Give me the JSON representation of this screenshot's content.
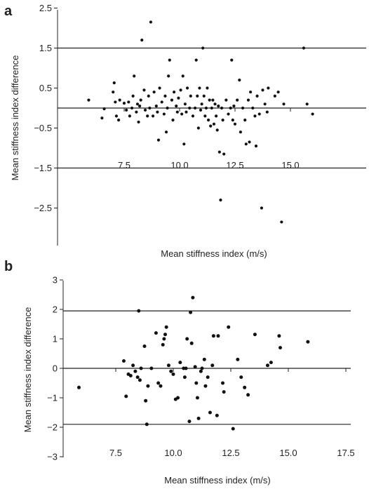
{
  "chart_data": [
    {
      "type": "scatter",
      "panel_label": "a",
      "xlabel": "Mean stiffness index (m/s)",
      "ylabel": "Mean stiffness index difference",
      "xlim": [
        5.5,
        16.5
      ],
      "ylim": [
        -3.0,
        3.0
      ],
      "x_ticks": [
        "7.5",
        "10.0",
        "12.5",
        "15.0"
      ],
      "y_ticks": [
        "2.5",
        "1.5",
        "0.5",
        "−0.5",
        "−1.5",
        "−2.5"
      ],
      "reference_lines": [
        1.5,
        0.0,
        -1.5
      ],
      "points": [
        [
          5.9,
          0.2
        ],
        [
          6.5,
          -0.25
        ],
        [
          6.6,
          -0.02
        ],
        [
          7.0,
          0.4
        ],
        [
          7.05,
          0.63
        ],
        [
          7.1,
          0.15
        ],
        [
          7.15,
          -0.2
        ],
        [
          7.25,
          -0.3
        ],
        [
          7.3,
          0.2
        ],
        [
          7.5,
          0.12
        ],
        [
          7.6,
          -0.05
        ],
        [
          7.7,
          0.15
        ],
        [
          7.75,
          -0.2
        ],
        [
          7.85,
          0.0
        ],
        [
          7.9,
          0.3
        ],
        [
          7.95,
          0.8
        ],
        [
          8.05,
          -0.1
        ],
        [
          8.1,
          0.1
        ],
        [
          8.15,
          -0.35
        ],
        [
          8.2,
          0.05
        ],
        [
          8.25,
          0.2
        ],
        [
          8.3,
          1.7
        ],
        [
          8.4,
          0.45
        ],
        [
          8.45,
          -0.05
        ],
        [
          8.55,
          -0.2
        ],
        [
          8.6,
          0.3
        ],
        [
          8.65,
          0.0
        ],
        [
          8.7,
          2.15
        ],
        [
          8.8,
          -0.2
        ],
        [
          8.85,
          0.4
        ],
        [
          8.95,
          0.05
        ],
        [
          9.0,
          -0.1
        ],
        [
          9.05,
          -0.8
        ],
        [
          9.1,
          0.5
        ],
        [
          9.2,
          0.15
        ],
        [
          9.3,
          -0.15
        ],
        [
          9.35,
          0.3
        ],
        [
          9.4,
          -0.6
        ],
        [
          9.45,
          0.0
        ],
        [
          9.5,
          0.8
        ],
        [
          9.55,
          1.2
        ],
        [
          9.65,
          0.2
        ],
        [
          9.7,
          -0.3
        ],
        [
          9.75,
          0.4
        ],
        [
          9.85,
          0.05
        ],
        [
          9.9,
          -0.1
        ],
        [
          9.95,
          0.25
        ],
        [
          10.05,
          0.45
        ],
        [
          10.1,
          -0.15
        ],
        [
          10.15,
          0.8
        ],
        [
          10.2,
          -0.9
        ],
        [
          10.25,
          0.1
        ],
        [
          10.3,
          -0.1
        ],
        [
          10.35,
          0.5
        ],
        [
          10.45,
          0.0
        ],
        [
          10.5,
          0.3
        ],
        [
          10.6,
          -0.2
        ],
        [
          10.7,
          0.0
        ],
        [
          10.75,
          1.2
        ],
        [
          10.8,
          0.3
        ],
        [
          10.85,
          -0.5
        ],
        [
          10.9,
          0.5
        ],
        [
          10.95,
          -0.05
        ],
        [
          11.0,
          0.1
        ],
        [
          11.05,
          1.5
        ],
        [
          11.1,
          0.3
        ],
        [
          11.15,
          -0.2
        ],
        [
          11.2,
          0.0
        ],
        [
          11.25,
          0.5
        ],
        [
          11.3,
          -0.3
        ],
        [
          11.35,
          0.2
        ],
        [
          11.4,
          -0.45
        ],
        [
          11.45,
          0.0
        ],
        [
          11.5,
          0.2
        ],
        [
          11.55,
          -0.4
        ],
        [
          11.6,
          0.1
        ],
        [
          11.65,
          -0.2
        ],
        [
          11.7,
          -0.55
        ],
        [
          11.75,
          0.05
        ],
        [
          11.8,
          -1.1
        ],
        [
          11.85,
          -2.3
        ],
        [
          11.9,
          0.0
        ],
        [
          11.95,
          -0.3
        ],
        [
          12.0,
          -1.15
        ],
        [
          12.1,
          0.2
        ],
        [
          12.2,
          -0.15
        ],
        [
          12.3,
          0.0
        ],
        [
          12.35,
          1.2
        ],
        [
          12.4,
          -0.3
        ],
        [
          12.45,
          0.05
        ],
        [
          12.5,
          -0.4
        ],
        [
          12.6,
          0.2
        ],
        [
          12.7,
          0.7
        ],
        [
          12.75,
          -0.6
        ],
        [
          12.85,
          0.0
        ],
        [
          12.95,
          -0.3
        ],
        [
          13.0,
          -0.9
        ],
        [
          13.1,
          0.2
        ],
        [
          13.15,
          -0.85
        ],
        [
          13.2,
          0.4
        ],
        [
          13.3,
          0.0
        ],
        [
          13.4,
          -0.2
        ],
        [
          13.45,
          -0.95
        ],
        [
          13.5,
          0.3
        ],
        [
          13.6,
          -0.15
        ],
        [
          13.7,
          -2.5
        ],
        [
          13.75,
          0.45
        ],
        [
          13.85,
          0.1
        ],
        [
          13.95,
          -0.1
        ],
        [
          14.0,
          0.5
        ],
        [
          14.3,
          0.3
        ],
        [
          14.45,
          0.4
        ],
        [
          14.6,
          -2.85
        ],
        [
          14.7,
          0.1
        ],
        [
          15.6,
          1.5
        ],
        [
          15.75,
          0.1
        ],
        [
          16.0,
          -0.15
        ]
      ]
    },
    {
      "type": "scatter",
      "panel_label": "b",
      "xlabel": "Mean stiffness index (m/s)",
      "ylabel": "Mean stiffness index difference",
      "xlim": [
        5.5,
        17.5
      ],
      "ylim": [
        -3.0,
        3.0
      ],
      "x_ticks": [
        "7.5",
        "10.0",
        "12.5",
        "15.0",
        "17.5"
      ],
      "y_ticks": [
        "3",
        "2",
        "1",
        "0",
        "−1",
        "−2",
        "−3"
      ],
      "reference_lines": [
        1.95,
        0.0,
        -1.9
      ],
      "points": [
        [
          5.9,
          -0.65
        ],
        [
          7.85,
          0.25
        ],
        [
          7.95,
          -0.95
        ],
        [
          8.05,
          -0.2
        ],
        [
          8.15,
          -0.25
        ],
        [
          8.25,
          0.1
        ],
        [
          8.35,
          -0.1
        ],
        [
          8.45,
          -0.3
        ],
        [
          8.5,
          1.95
        ],
        [
          8.55,
          -0.4
        ],
        [
          8.6,
          0.0
        ],
        [
          8.75,
          0.75
        ],
        [
          8.8,
          -1.1
        ],
        [
          8.85,
          -1.9
        ],
        [
          8.9,
          -0.6
        ],
        [
          9.05,
          0.0
        ],
        [
          9.25,
          1.2
        ],
        [
          9.35,
          -0.5
        ],
        [
          9.45,
          -0.6
        ],
        [
          9.55,
          0.8
        ],
        [
          9.6,
          1.0
        ],
        [
          9.65,
          1.15
        ],
        [
          9.7,
          1.4
        ],
        [
          9.8,
          0.1
        ],
        [
          9.9,
          -0.1
        ],
        [
          10.0,
          -0.2
        ],
        [
          10.1,
          -1.05
        ],
        [
          10.2,
          -1.0
        ],
        [
          10.3,
          0.2
        ],
        [
          10.45,
          0.0
        ],
        [
          10.5,
          -0.3
        ],
        [
          10.55,
          0.0
        ],
        [
          10.6,
          1.0
        ],
        [
          10.7,
          -1.8
        ],
        [
          10.75,
          1.9
        ],
        [
          10.8,
          0.85
        ],
        [
          10.85,
          2.4
        ],
        [
          10.95,
          0.05
        ],
        [
          11.0,
          -0.5
        ],
        [
          11.05,
          -1.0
        ],
        [
          11.1,
          -1.7
        ],
        [
          11.2,
          -0.1
        ],
        [
          11.25,
          0.0
        ],
        [
          11.35,
          0.3
        ],
        [
          11.4,
          -0.6
        ],
        [
          11.5,
          -0.3
        ],
        [
          11.6,
          -1.5
        ],
        [
          11.7,
          0.1
        ],
        [
          11.75,
          1.1
        ],
        [
          11.9,
          -1.6
        ],
        [
          11.95,
          1.1
        ],
        [
          12.15,
          -0.5
        ],
        [
          12.2,
          -0.8
        ],
        [
          12.4,
          1.4
        ],
        [
          12.6,
          -2.05
        ],
        [
          12.8,
          0.3
        ],
        [
          12.95,
          -0.3
        ],
        [
          13.1,
          -0.65
        ],
        [
          13.25,
          -0.9
        ],
        [
          13.55,
          1.15
        ],
        [
          14.1,
          0.1
        ],
        [
          14.25,
          0.2
        ],
        [
          14.6,
          1.1
        ],
        [
          14.65,
          0.7
        ],
        [
          15.85,
          0.9
        ]
      ]
    }
  ]
}
